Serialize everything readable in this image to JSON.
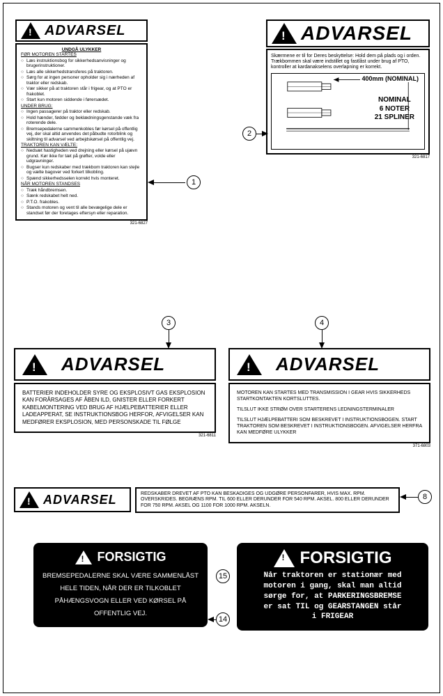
{
  "words": {
    "advarsel": "ADVARSEL",
    "forsigtig": "FORSIGTIG"
  },
  "label1": {
    "title": "UNDGÅ ULYKKER",
    "sec1_title": "FØR MOTOREN STARTES",
    "sec1": [
      "Læs instruktionsbog for sikkerhedsanvisninger og brugerinstruktioner.",
      "Læs alle sikkerhedstransferes på traktoren.",
      "Sørg for at ingen personer opholder sig i nærheden af traktor eller redskab.",
      "Vær sikker på at traktoren står i frigear, og at PTO er frakoblet.",
      "Start kun motoren siddende i førersædet."
    ],
    "sec2_title": "UNDER BRUG:",
    "sec2": [
      "Ingen passagerer på traktor eller redskab.",
      "Hold hænder, fødder og beklædningsgenstande væk fra roterende dele.",
      "Bremsepedalerne sammenkobles før kørsel på offentlig vej, der skal altid anvendes det påbudte rotorblink og skiltning til advarsel ved arbejdskørsel på offentlig vej."
    ],
    "sec3_title": "TRAKTOREN KAN VÆLTE:",
    "sec3": [
      "Nedsæt hastigheden ved drejning eller kørsel på ujævn grund. Kør ikke for tæt på grøfter, volde eller udgravninger.",
      "Bugser kun redskaber med trækbom traktoren kan stejle og vælte bagover ved forkert tilkobling.",
      "Spænd sikkerhedsselen korrekt hvis monteret."
    ],
    "sec4_title": "NÅR MOTOREN STANDSES",
    "sec4": [
      "Træk håndbremsen.",
      "Sænk redskabet helt ned.",
      "P.T.O. frakobles.",
      "Stands motoren og vent til alle bevægelige dele er standset før der foretages eftersyn eller reparation."
    ],
    "partno": "321-6827"
  },
  "label2": {
    "text": "Skærmene er til for Deres beskyttelse: Hold dem på plads og i orden.\nTrækbommen skal være indstillet og fastlåst under brug af PTO, kontroller at kardanakselens overlapning er korrekt.",
    "dim": "400mm (NOMINAL)",
    "spec1": "NOMINAL",
    "spec2": "6 NOTER",
    "spec3": "21 SPLINER",
    "partno": "321-6817"
  },
  "label3": {
    "text": "BATTERIER INDEHOLDER SYRE OG EKSPLOSIVT GAS EKSPLOSION KAN FORÅRSAGES AF ÅBEN ILD, GNISTER ELLER FORKERT KABELMONTERING VED BRUG AF HJÆLPEBATTERIER ELLER LADEAPPERAT, SE INSTRUKTIONSBOG HERFOR, AFVIGELSER KAN MEDFØRER EKSPLOSION, MED PERSONSKADE TIL FØLGE",
    "partno": "321-6811"
  },
  "label4": {
    "l1": "MOTOREN KAN STARTES MED TRANSMISSION I GEAR HVIS SIKKERHEDS STARTKONTAKTEN KORTSLUTTES.",
    "l2": "TILSLUT IKKE STRØM OVER STARTERENS LEDNINGSTERMINALER",
    "l3": "TILSLUT HJÆLPEBATTERI SOM BESKREVET I INSTRUKTIONSBOGEN. START TRAKTOREN SOM BESKREVET I INSTRUKTIONSBOGEN. AFVIGELSER HERFRA KAN MEDFØRE ULYKKER",
    "partno": "371-6803"
  },
  "label8": {
    "text": "REDSKABER DREVET AF PTO KAN BESKADIGES OG UDGØRE PERSONFARER, HVIS MAX. RPM. OVERSKRIDES. BEGRÆNS RPM. TIL 600 ELLER DERUNDER FOR 540 RPM. AKSEL. 800 ELLER DERUNDER FOR 750 RPM. AKSEL OG 1100 FOR 1000 RPM. AKSELN."
  },
  "label14": {
    "text": "BREMSEPEDALERNE SKAL VÆRE SAMMENLÅST HELE TIDEN, NÅR DER ER TILKOBLET PÅHÆNGSVOGN ELLER VED KØRSEL PÅ OFFENTLIG VEJ."
  },
  "label15": {
    "l1": "Når traktoren er stationær med",
    "l2": "motoren i gang, skal man altid",
    "l3": "sørge for, at PARKERINGSBREMSE",
    "l4": "er sat TIL og GEARSTANGEN står",
    "l5": "i FRIGEAR"
  },
  "callouts": {
    "c1": "1",
    "c2": "2",
    "c3": "3",
    "c4": "4",
    "c8": "8",
    "c14": "14",
    "c15": "15"
  },
  "colors": {
    "fg": "#000000",
    "bg": "#ffffff"
  }
}
